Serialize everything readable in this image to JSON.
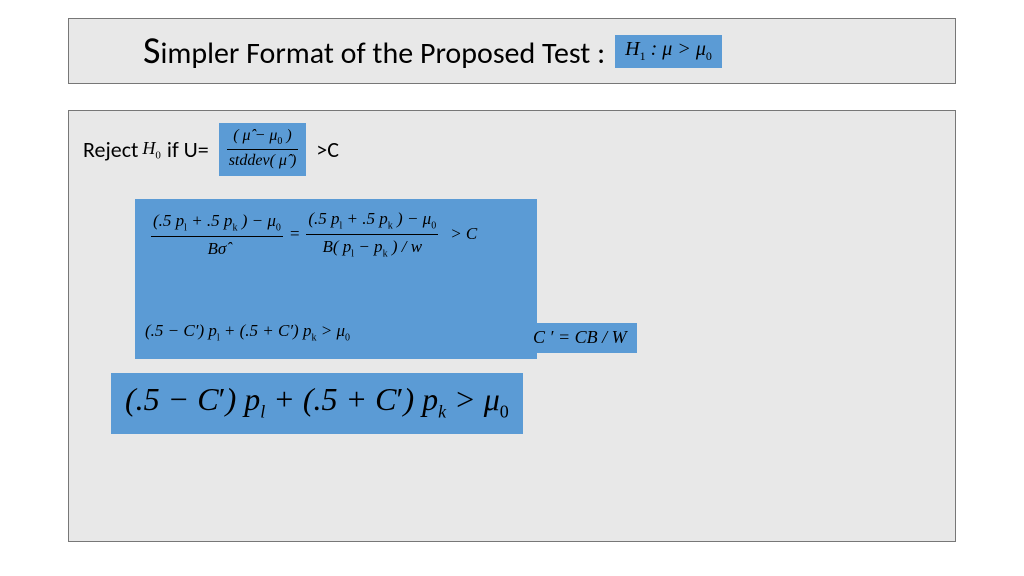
{
  "colors": {
    "page_bg": "#ffffff",
    "panel_bg": "#e8e8e8",
    "panel_border": "#777777",
    "highlight_bg": "#5b9bd5",
    "text": "#000000"
  },
  "title": {
    "leading_cap": "S",
    "rest": "impler Format of the Proposed Test :",
    "fontsize_main": 30,
    "fontsize_cap": 38,
    "h1_badge_html": "H<span class='sub'>1</span> : μ &gt; μ<span class='sub'>0</span>"
  },
  "reject_line": {
    "reject_word": "Reject",
    "h0_html": "H<span class='sub'>0</span>",
    "if_u_eq": "if U=",
    "frac_num": "( μ̂ − μ<span class='sub-s'>0</span> )",
    "frac_den": "stddev( μ̂ )",
    "gt_c": ">C"
  },
  "derivation": {
    "frac1_num": "(.5 p<span class='sub-s'>l</span> + .5 p<span class='sub-s'>k</span> ) − μ<span class='sub-s'>0</span>",
    "frac1_den": "Bσ̂",
    "eq_sign": "=",
    "frac2_num": "(.5 p<span class='sub-s'>l</span> + .5 p<span class='sub-s'>k</span> ) − μ<span class='sub-s'>0</span>",
    "frac2_den": "B( p<span class='sub-s'>l</span> − p<span class='sub-s'>k</span> ) / w",
    "gt_c": "&gt; C",
    "line2_html": "(.5 − C′) p<span class='sub-s'>l</span> + (.5 + C′) p<span class='sub-s'>k</span> &gt; μ<span class='sub-s'>0</span>"
  },
  "cprime": {
    "text_html": "C ′ = CB / W"
  },
  "final": {
    "text_html": "(.5 − C<span class='prime'>′</span>) p<span class='subb'>l</span> + (.5 + C<span class='prime'>′</span>) p<span class='subb'>k</span> &gt; μ<span class='subn'>0</span>"
  }
}
